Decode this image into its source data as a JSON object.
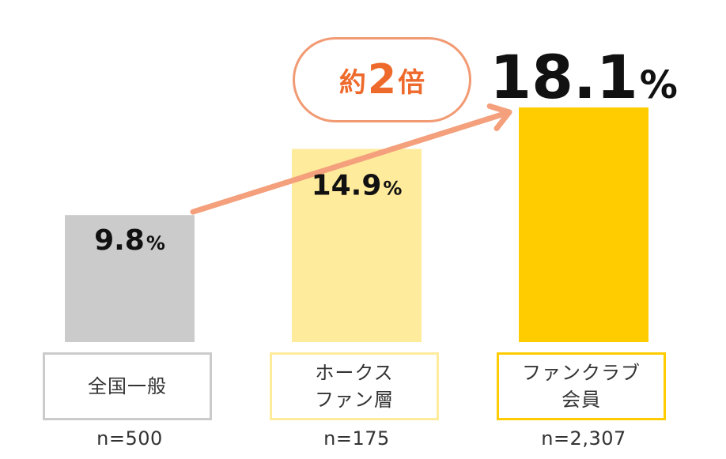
{
  "chart_data": {
    "type": "bar",
    "categories": [
      "全国一般",
      "ホークス\nファン層",
      "ファンクラブ\n会員"
    ],
    "values": [
      9.8,
      14.9,
      18.1
    ],
    "value_labels": [
      "9.8",
      "14.9",
      "18.1"
    ],
    "value_unit": "%",
    "sample_sizes": [
      "n=500",
      "n=175",
      "n=2,307"
    ],
    "bar_colors": [
      "#cbcbcb",
      "#feeb9c",
      "#ffcc00"
    ],
    "label_border_colors": [
      "#cbcbcb",
      "#feeb9c",
      "#ffcc00"
    ],
    "arrow_color": "#f4a07c",
    "ylim": [
      0,
      18.1
    ],
    "grid": false,
    "callout": {
      "prefix": "約",
      "number": "2",
      "suffix": "倍",
      "text_color": "#ee6a2c",
      "border_color": "#f19a73"
    }
  }
}
